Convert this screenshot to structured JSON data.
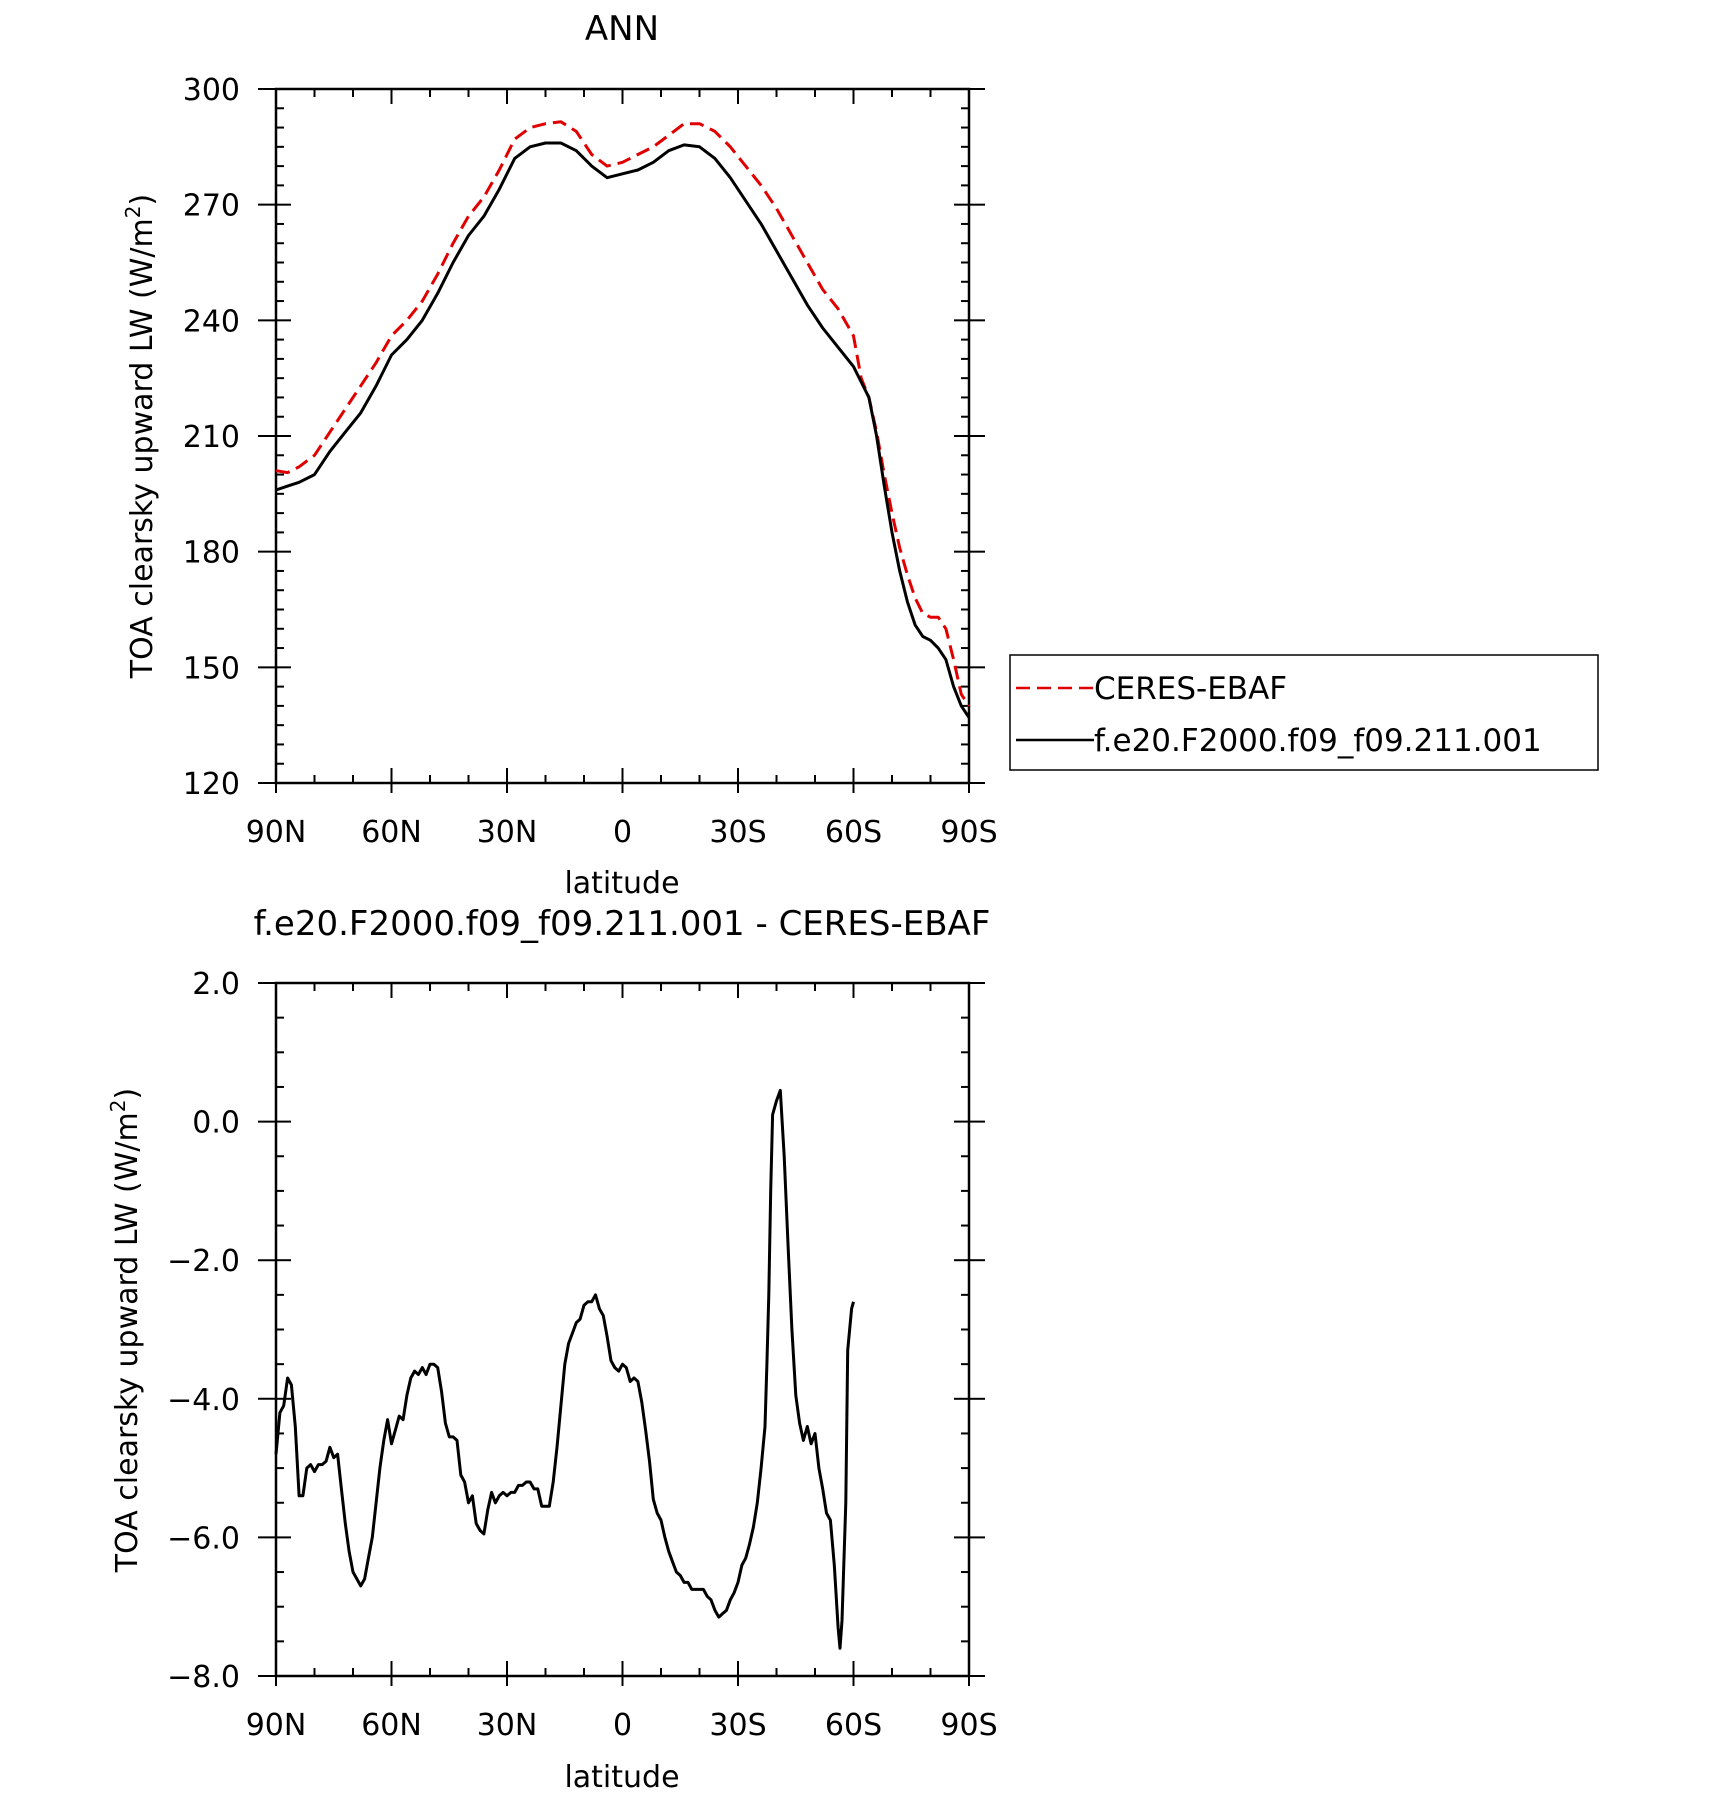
{
  "chart_data": [
    {
      "type": "line",
      "title": "ANN",
      "xlabel": "latitude",
      "ylabel": "TOA clearsky upward LW (W/m",
      "ylabel_sup": "2",
      "ylabel_close": ")",
      "x_direction": "90N to 90S (latitude decreasing)",
      "x_ticks": [
        90,
        60,
        30,
        0,
        -30,
        -60,
        -90
      ],
      "x_tick_labels": [
        "90N",
        "60N",
        "30N",
        "0",
        "30S",
        "60S",
        "90S"
      ],
      "xlim": [
        90,
        -90
      ],
      "ylim": [
        120,
        300
      ],
      "y_ticks": [
        120,
        150,
        180,
        210,
        240,
        270,
        300
      ],
      "y_tick_labels": [
        "120",
        "150",
        "180",
        "210",
        "240",
        "270",
        "300"
      ],
      "grid": false,
      "legend_position": "outside-right",
      "series": [
        {
          "name": "CERES-EBAF",
          "color": "#e00000",
          "dash": "dashed",
          "points": [
            [
              90,
              201
            ],
            [
              87,
              200.5
            ],
            [
              84,
              202
            ],
            [
              80,
              205
            ],
            [
              76,
              211
            ],
            [
              72,
              217
            ],
            [
              68,
              223
            ],
            [
              64,
              229
            ],
            [
              60,
              236
            ],
            [
              56,
              240
            ],
            [
              52,
              245
            ],
            [
              48,
              252
            ],
            [
              44,
              260
            ],
            [
              40,
              267
            ],
            [
              36,
              272
            ],
            [
              32,
              279
            ],
            [
              28,
              287
            ],
            [
              24,
              290
            ],
            [
              20,
              291
            ],
            [
              16,
              291.5
            ],
            [
              12,
              289
            ],
            [
              8,
              283
            ],
            [
              4,
              280
            ],
            [
              0,
              281
            ],
            [
              -4,
              283
            ],
            [
              -8,
              285
            ],
            [
              -12,
              288
            ],
            [
              -16,
              291
            ],
            [
              -20,
              291
            ],
            [
              -24,
              289
            ],
            [
              -28,
              285
            ],
            [
              -32,
              280
            ],
            [
              -36,
              275
            ],
            [
              -40,
              269
            ],
            [
              -44,
              262
            ],
            [
              -48,
              255
            ],
            [
              -52,
              248
            ],
            [
              -56,
              243
            ],
            [
              -60,
              236
            ],
            [
              -62,
              225
            ],
            [
              -64,
              220
            ],
            [
              -66,
              211
            ],
            [
              -68,
              200
            ],
            [
              -70,
              190
            ],
            [
              -72,
              181
            ],
            [
              -74,
              174
            ],
            [
              -76,
              168
            ],
            [
              -78,
              164
            ],
            [
              -80,
              163
            ],
            [
              -82,
              163
            ],
            [
              -84,
              160
            ],
            [
              -86,
              152
            ],
            [
              -88,
              143
            ],
            [
              -90,
              140
            ]
          ]
        },
        {
          "name": "f.e20.F2000.f09_f09.211.001",
          "color": "#000000",
          "dash": "solid",
          "points": [
            [
              90,
              196
            ],
            [
              87,
              197
            ],
            [
              84,
              198
            ],
            [
              80,
              200
            ],
            [
              76,
              206
            ],
            [
              72,
              211
            ],
            [
              68,
              216
            ],
            [
              64,
              223
            ],
            [
              60,
              231
            ],
            [
              56,
              235
            ],
            [
              52,
              240
            ],
            [
              48,
              247
            ],
            [
              44,
              255
            ],
            [
              40,
              262
            ],
            [
              36,
              267
            ],
            [
              32,
              274
            ],
            [
              28,
              282
            ],
            [
              24,
              285
            ],
            [
              20,
              286
            ],
            [
              16,
              286
            ],
            [
              12,
              284
            ],
            [
              8,
              280
            ],
            [
              4,
              277
            ],
            [
              0,
              278
            ],
            [
              -4,
              279
            ],
            [
              -8,
              281
            ],
            [
              -12,
              284
            ],
            [
              -16,
              285.5
            ],
            [
              -20,
              285
            ],
            [
              -24,
              282
            ],
            [
              -28,
              277
            ],
            [
              -32,
              271
            ],
            [
              -36,
              265
            ],
            [
              -40,
              258
            ],
            [
              -44,
              251
            ],
            [
              -48,
              244
            ],
            [
              -52,
              238
            ],
            [
              -56,
              233
            ],
            [
              -60,
              228
            ],
            [
              -62,
              224
            ],
            [
              -64,
              220
            ],
            [
              -66,
              210
            ],
            [
              -68,
              197
            ],
            [
              -70,
              185
            ],
            [
              -72,
              175
            ],
            [
              -74,
              167
            ],
            [
              -76,
              161
            ],
            [
              -78,
              158
            ],
            [
              -80,
              157
            ],
            [
              -82,
              155
            ],
            [
              -84,
              152
            ],
            [
              -86,
              145
            ],
            [
              -88,
              140
            ],
            [
              -90,
              137
            ]
          ]
        }
      ]
    },
    {
      "type": "line",
      "title": "f.e20.F2000.f09_f09.211.001 - CERES-EBAF",
      "xlabel": "latitude",
      "ylabel": "TOA clearsky upward LW (W/m",
      "ylabel_sup": "2",
      "ylabel_close": ")",
      "x_ticks": [
        90,
        60,
        30,
        0,
        -30,
        -60,
        -90
      ],
      "x_tick_labels": [
        "90N",
        "60N",
        "30N",
        "0",
        "30S",
        "60S",
        "90S"
      ],
      "xlim": [
        90,
        -90
      ],
      "ylim": [
        -8,
        2
      ],
      "y_ticks": [
        -8,
        -6,
        -4,
        -2,
        0,
        2
      ],
      "y_tick_labels": [
        "−8.0",
        "−6.0",
        "−4.0",
        "−2.0",
        "0.0",
        "2.0"
      ],
      "grid": false,
      "series": [
        {
          "color": "#000000",
          "dash": "solid",
          "points": [
            [
              90,
              -4.8
            ],
            [
              89,
              -4.2
            ],
            [
              88,
              -4.1
            ],
            [
              87,
              -3.7
            ],
            [
              86,
              -3.8
            ],
            [
              85,
              -4.4
            ],
            [
              84,
              -5.4
            ],
            [
              83,
              -5.4
            ],
            [
              82,
              -5.0
            ],
            [
              81,
              -4.95
            ],
            [
              80,
              -5.05
            ],
            [
              79,
              -4.95
            ],
            [
              78,
              -4.95
            ],
            [
              77,
              -4.9
            ],
            [
              76,
              -4.7
            ],
            [
              75,
              -4.85
            ],
            [
              74,
              -4.8
            ],
            [
              73,
              -5.3
            ],
            [
              72,
              -5.8
            ],
            [
              71,
              -6.2
            ],
            [
              70,
              -6.5
            ],
            [
              69,
              -6.6
            ],
            [
              68,
              -6.7
            ],
            [
              67,
              -6.6
            ],
            [
              66,
              -6.3
            ],
            [
              65,
              -6.0
            ],
            [
              64,
              -5.5
            ],
            [
              63,
              -5.0
            ],
            [
              62,
              -4.6
            ],
            [
              61,
              -4.3
            ],
            [
              60,
              -4.65
            ],
            [
              59,
              -4.45
            ],
            [
              58,
              -4.25
            ],
            [
              57,
              -4.3
            ],
            [
              56,
              -3.95
            ],
            [
              55,
              -3.7
            ],
            [
              54,
              -3.6
            ],
            [
              53,
              -3.65
            ],
            [
              52,
              -3.55
            ],
            [
              51,
              -3.65
            ],
            [
              50,
              -3.5
            ],
            [
              49,
              -3.5
            ],
            [
              48,
              -3.55
            ],
            [
              47,
              -3.9
            ],
            [
              46,
              -4.35
            ],
            [
              45,
              -4.55
            ],
            [
              44,
              -4.55
            ],
            [
              43,
              -4.6
            ],
            [
              42,
              -5.1
            ],
            [
              41,
              -5.2
            ],
            [
              40,
              -5.5
            ],
            [
              39,
              -5.4
            ],
            [
              38,
              -5.8
            ],
            [
              37,
              -5.9
            ],
            [
              36,
              -5.95
            ],
            [
              35,
              -5.6
            ],
            [
              34,
              -5.35
            ],
            [
              33,
              -5.5
            ],
            [
              32,
              -5.4
            ],
            [
              31,
              -5.35
            ],
            [
              30,
              -5.4
            ],
            [
              29,
              -5.35
            ],
            [
              28,
              -5.35
            ],
            [
              27,
              -5.25
            ],
            [
              26,
              -5.25
            ],
            [
              25,
              -5.2
            ],
            [
              24,
              -5.2
            ],
            [
              23,
              -5.3
            ],
            [
              22,
              -5.3
            ],
            [
              21,
              -5.55
            ],
            [
              20,
              -5.55
            ],
            [
              19,
              -5.55
            ],
            [
              18,
              -5.2
            ],
            [
              17,
              -4.7
            ],
            [
              16,
              -4.1
            ],
            [
              15,
              -3.5
            ],
            [
              14,
              -3.2
            ],
            [
              13,
              -3.05
            ],
            [
              12,
              -2.9
            ],
            [
              11,
              -2.85
            ],
            [
              10,
              -2.65
            ],
            [
              9,
              -2.6
            ],
            [
              8,
              -2.6
            ],
            [
              7,
              -2.5
            ],
            [
              6,
              -2.7
            ],
            [
              5,
              -2.8
            ],
            [
              4,
              -3.1
            ],
            [
              3,
              -3.45
            ],
            [
              2,
              -3.55
            ],
            [
              1,
              -3.6
            ],
            [
              0,
              -3.5
            ],
            [
              -1,
              -3.55
            ],
            [
              -2,
              -3.75
            ],
            [
              -3,
              -3.7
            ],
            [
              -4,
              -3.75
            ],
            [
              -5,
              -4.05
            ],
            [
              -6,
              -4.45
            ],
            [
              -7,
              -4.9
            ],
            [
              -8,
              -5.45
            ],
            [
              -9,
              -5.65
            ],
            [
              -10,
              -5.75
            ],
            [
              -11,
              -6.0
            ],
            [
              -12,
              -6.2
            ],
            [
              -13,
              -6.35
            ],
            [
              -14,
              -6.5
            ],
            [
              -15,
              -6.55
            ],
            [
              -16,
              -6.65
            ],
            [
              -17,
              -6.65
            ],
            [
              -18,
              -6.75
            ],
            [
              -19,
              -6.75
            ],
            [
              -20,
              -6.75
            ],
            [
              -21,
              -6.75
            ],
            [
              -22,
              -6.85
            ],
            [
              -23,
              -6.9
            ],
            [
              -24,
              -7.05
            ],
            [
              -25,
              -7.15
            ],
            [
              -26,
              -7.1
            ],
            [
              -27,
              -7.05
            ],
            [
              -28,
              -6.9
            ],
            [
              -29,
              -6.8
            ],
            [
              -30,
              -6.65
            ],
            [
              -31,
              -6.4
            ],
            [
              -32,
              -6.3
            ],
            [
              -33,
              -6.1
            ],
            [
              -34,
              -5.85
            ],
            [
              -35,
              -5.5
            ],
            [
              -36,
              -5.0
            ],
            [
              -37,
              -4.4
            ],
            [
              -37.5,
              -3.5
            ],
            [
              -38,
              -2.5
            ],
            [
              -38.5,
              -1.0
            ],
            [
              -39,
              0.1
            ],
            [
              -40,
              0.3
            ],
            [
              -41,
              0.45
            ],
            [
              -42,
              -0.5
            ],
            [
              -43,
              -1.8
            ],
            [
              -44,
              -3.0
            ],
            [
              -45,
              -3.95
            ],
            [
              -46,
              -4.35
            ],
            [
              -47,
              -4.6
            ],
            [
              -48,
              -4.4
            ],
            [
              -49,
              -4.65
            ],
            [
              -50,
              -4.5
            ],
            [
              -51,
              -5.0
            ],
            [
              -52,
              -5.3
            ],
            [
              -53,
              -5.65
            ],
            [
              -54,
              -5.75
            ],
            [
              -55,
              -6.4
            ],
            [
              -56,
              -7.3
            ],
            [
              -56.5,
              -7.6
            ],
            [
              -57,
              -7.2
            ],
            [
              -58,
              -5.5
            ],
            [
              -58.5,
              -3.3
            ],
            [
              -59.5,
              -2.7
            ],
            [
              -60,
              -2.6
            ]
          ]
        }
      ]
    }
  ]
}
